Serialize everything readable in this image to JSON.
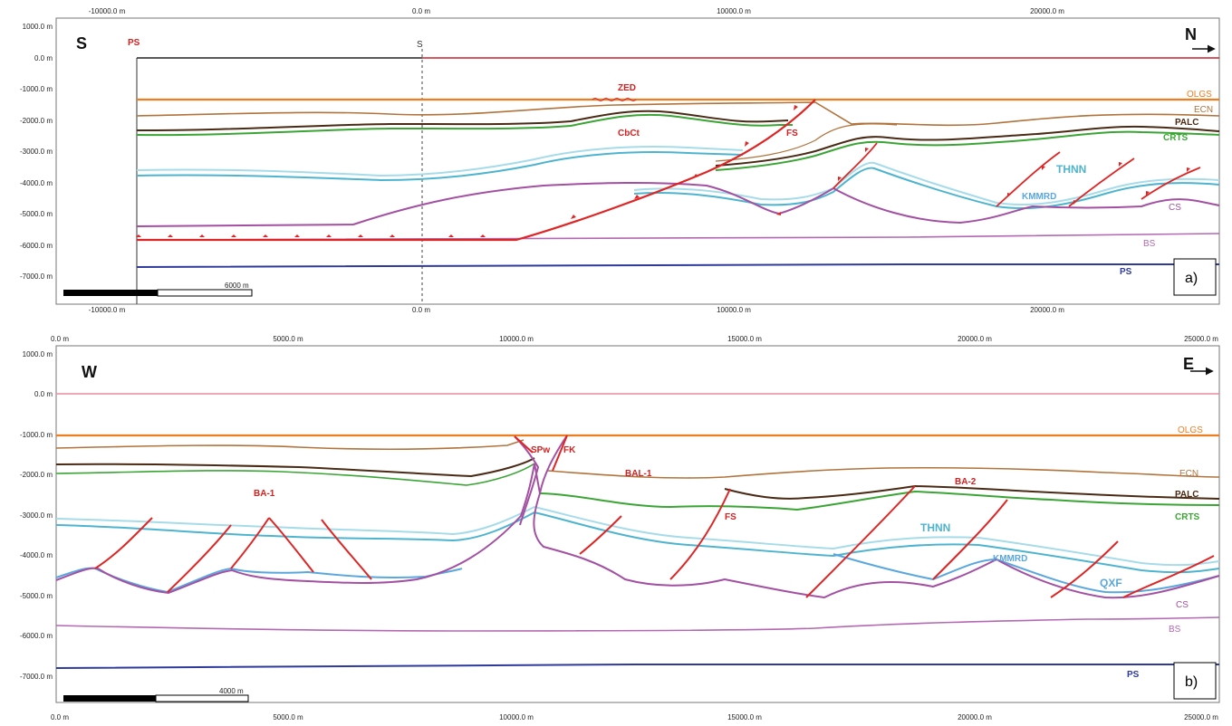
{
  "colors": {
    "olgs": "#ee7d22",
    "ecn": "#b0733b",
    "palc": "#4a2a14",
    "crts": "#3aa534",
    "thnn_light": "#a6dbe9",
    "thnn": "#4db4cf",
    "kmmrd": "#5aa7de",
    "cs": "#a350a3",
    "bs": "#b368b3",
    "ps": "#2e3b9c",
    "fault": "#e02424",
    "surface": "#c8202a",
    "fault_text": "#d42020",
    "pink_surface": "#e98a9a"
  },
  "panel_a": {
    "tag": "a)",
    "direction_left": "S",
    "direction_right": "N",
    "x_ticks": [
      "-10000.0 m",
      "0.0 m",
      "10000.0 m",
      "20000.0 m"
    ],
    "y_ticks": [
      "1000.0 m",
      "0.0 m",
      "-1000.0 m",
      "-2000.0 m",
      "-3000.0 m",
      "-4000.0 m",
      "-5000.0 m",
      "-6000.0 m",
      "-7000.0 m"
    ],
    "scale_label": "6000 m",
    "labels": {
      "ps_top": "PS",
      "s_top": "S",
      "zed": "ZED",
      "cbct": "CbCt",
      "fs": "FS",
      "olgs": "OLGS",
      "ecn": "ECN",
      "palc": "PALC",
      "crts": "CRTS",
      "thnn": "THNN",
      "kmmrd": "KMMRD",
      "cs": "CS",
      "bs": "BS",
      "ps": "PS"
    }
  },
  "panel_b": {
    "tag": "b)",
    "direction_left": "W",
    "direction_right": "E",
    "x_ticks": [
      "0.0 m",
      "5000.0 m",
      "10000.0 m",
      "15000.0 m",
      "20000.0 m",
      "25000.0 m"
    ],
    "y_ticks": [
      "1000.0 m",
      "0.0 m",
      "-1000.0 m",
      "-2000.0 m",
      "-3000.0 m",
      "-4000.0 m",
      "-5000.0 m",
      "-6000.0 m",
      "-7000.0 m"
    ],
    "scale_label": "4000 m",
    "labels": {
      "spw": "SPw",
      "fk": "FK",
      "bal1": "BAL-1",
      "ba1": "BA-1",
      "ba2": "BA-2",
      "fs": "FS",
      "olgs": "OLGS",
      "ecn": "ECN",
      "palc": "PALC",
      "crts": "CRTS",
      "thnn": "THNN",
      "kmmrd": "KMMRD",
      "qxf": "QXF",
      "cs": "CS",
      "bs": "BS",
      "ps": "PS"
    }
  }
}
